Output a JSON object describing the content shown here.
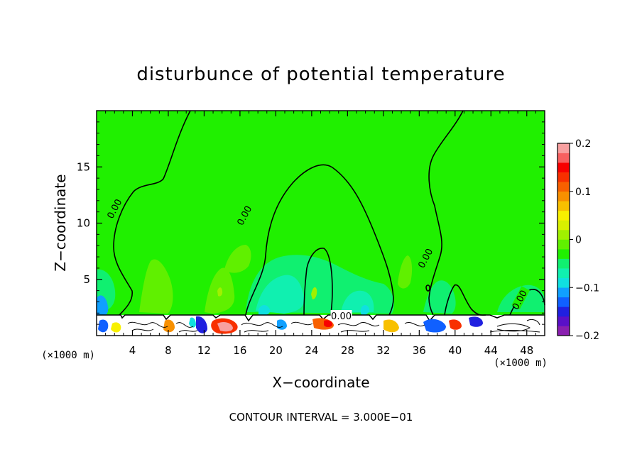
{
  "chart_data": {
    "type": "heatmap",
    "title": "disturbunce of potential temperature",
    "xlabel": "X−coordinate",
    "ylabel": "Z−coordinate",
    "x_unit": "(×1000 m)",
    "y_unit": "(×1000 m)",
    "xlim": [
      0,
      50
    ],
    "ylim": [
      0,
      20
    ],
    "x_ticks": [
      4,
      8,
      12,
      16,
      20,
      24,
      28,
      32,
      36,
      40,
      44,
      48
    ],
    "x_tick_labels": [
      "4",
      "8",
      "12",
      "16",
      "20",
      "24",
      "28",
      "32",
      "36",
      "40",
      "44",
      "48"
    ],
    "y_ticks": [
      5,
      10,
      15
    ],
    "y_tick_labels": [
      "5",
      "10",
      "15"
    ],
    "colorbar": {
      "min": -0.2,
      "max": 0.2,
      "labels": [
        "0.2",
        "0.1",
        "0",
        "−0.1",
        "−0.2"
      ],
      "label_values": [
        0.2,
        0.1,
        0,
        -0.1,
        -0.2
      ],
      "colors": [
        "#8a1fb0",
        "#5a10c8",
        "#2020e0",
        "#1060ff",
        "#10a0ff",
        "#10e0e0",
        "#10f0b0",
        "#10f070",
        "#20f000",
        "#60f000",
        "#a0f000",
        "#d8f000",
        "#f8f000",
        "#f8c000",
        "#f89000",
        "#f86000",
        "#f83000",
        "#f80000",
        "#f86060",
        "#f8a0a0"
      ]
    },
    "contour_labels": [
      {
        "text": "0.00",
        "x": 2.3,
        "z": 11.4
      },
      {
        "text": "0.00",
        "x": 16.8,
        "z": 10.8
      },
      {
        "text": "0.00",
        "x": 37.0,
        "z": 7.0
      },
      {
        "text": "0.00",
        "x": 47.5,
        "z": 3.3
      },
      {
        "text": "0.00",
        "x": 27.3,
        "z": 1.7
      }
    ],
    "footer": "CONTOUR INTERVAL = 3.000E−01",
    "colors": {
      "background": "#20f000",
      "plume": "#10f070",
      "terrain": "#ffffff"
    }
  }
}
